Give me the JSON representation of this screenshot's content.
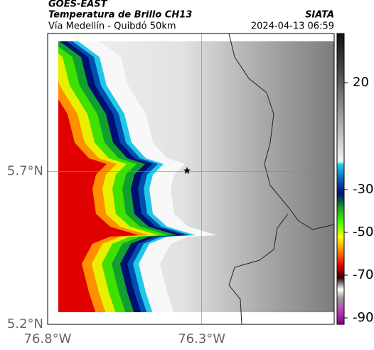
{
  "header": {
    "title": "GOES-EAST",
    "subtitle": "Temperatura de Brillo CH13",
    "route": "Vía Medellín - Quibdó 50km",
    "source": "SIATA",
    "timestamp": "2024-04-13 06:59"
  },
  "map": {
    "xlim": [
      -76.8,
      -75.87
    ],
    "ylim": [
      5.2,
      6.15
    ],
    "xticks": [
      {
        "value": -76.8,
        "label": "76.8°W"
      },
      {
        "value": -76.3,
        "label": "76.3°W"
      }
    ],
    "yticks": [
      {
        "value": 5.2,
        "label": "5.2°N"
      },
      {
        "value": 5.7,
        "label": "5.7°N"
      }
    ],
    "grid": true
  },
  "colorbar": {
    "lim": [
      -93,
      43
    ],
    "ticks": [
      20,
      -30,
      -50,
      -70,
      -90
    ]
  }
}
